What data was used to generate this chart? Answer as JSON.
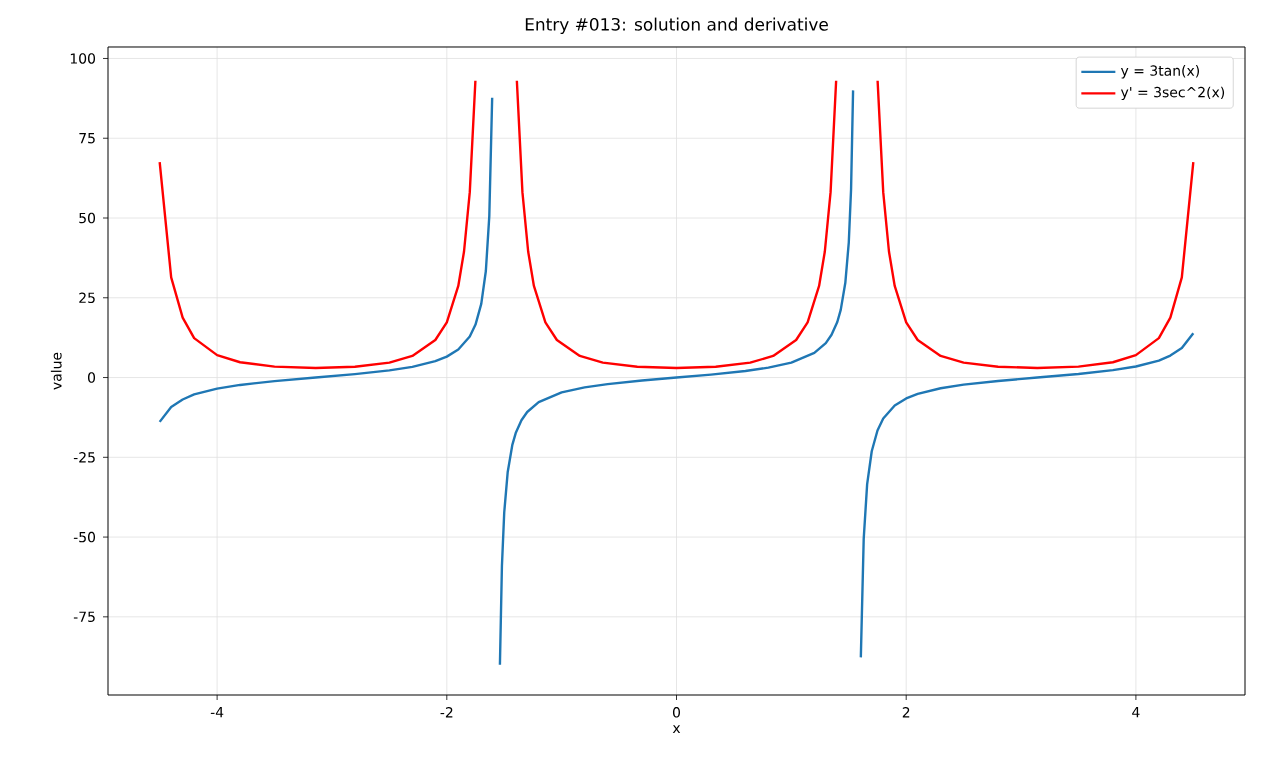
{
  "chart_data": {
    "type": "line",
    "title": "Entry #013: solution and derivative",
    "xlabel": "x",
    "ylabel": "value",
    "xlim": [
      -4.95,
      4.95
    ],
    "ylim": [
      -99.5,
      103.6
    ],
    "xticks": [
      -4,
      -2,
      0,
      2,
      4
    ],
    "yticks": [
      -75,
      -50,
      -25,
      0,
      25,
      50,
      75,
      100
    ],
    "grid": true,
    "legend": "top right",
    "series": [
      {
        "name": "y = 3tan(x)",
        "color": "#1f77b4",
        "x": [
          -4.5,
          -4.4,
          -4.3,
          -4.2,
          -4.0,
          -3.8,
          -3.5,
          -3.1416,
          -2.8,
          -2.5,
          -2.3,
          -2.1,
          -2.0,
          -1.9,
          -1.8,
          -1.75,
          -1.7,
          -1.66,
          -1.63,
          -1.605,
          -1.57,
          -1.5375,
          -1.52,
          -1.5,
          -1.47,
          -1.43,
          -1.4,
          -1.35,
          -1.3,
          -1.2,
          -1.0,
          -0.8,
          -0.6,
          -0.3,
          0,
          0.3,
          0.6,
          0.8,
          1.0,
          1.2,
          1.3,
          1.35,
          1.4,
          1.43,
          1.47,
          1.5,
          1.52,
          1.5375,
          1.57,
          1.605,
          1.63,
          1.66,
          1.7,
          1.75,
          1.8,
          1.9,
          2.0,
          2.1,
          2.3,
          2.5,
          2.8,
          3.1416,
          3.5,
          3.8,
          4.0,
          4.2,
          4.3,
          4.4,
          4.5
        ],
        "values": [
          -13.9,
          -9.23,
          -6.89,
          -5.3,
          -3.47,
          -2.32,
          -1.12,
          0,
          1.07,
          2.24,
          3.36,
          5.13,
          6.56,
          8.78,
          12.86,
          16.6,
          23.1,
          33.4,
          50.6,
          87.7,
          null,
          -90.0,
          -59.0,
          -42.3,
          -29.7,
          -21.2,
          -17.4,
          -13.4,
          -10.8,
          -7.72,
          -4.67,
          -3.09,
          -2.05,
          -0.93,
          0,
          0.93,
          2.05,
          3.09,
          4.67,
          7.72,
          10.8,
          13.4,
          17.4,
          21.2,
          29.7,
          42.3,
          59.0,
          90.0,
          null,
          -87.7,
          -50.6,
          -33.4,
          -23.1,
          -16.6,
          -12.86,
          -8.78,
          -6.56,
          -5.13,
          -3.36,
          -2.24,
          -1.07,
          0,
          1.12,
          2.32,
          3.47,
          5.3,
          6.89,
          9.23,
          13.9
        ]
      },
      {
        "name": "y' = 3sec^2(x)",
        "color": "#ff0000",
        "x": [
          -4.5,
          -4.4,
          -4.3,
          -4.2,
          -4.0,
          -3.8,
          -3.5,
          -3.1416,
          -2.8,
          -2.5,
          -2.3,
          -2.1,
          -2.0,
          -1.9,
          -1.85,
          -1.8,
          -1.751,
          -1.57,
          -1.39,
          -1.3416,
          -1.2916,
          -1.2416,
          -1.1416,
          -1.0416,
          -0.8416,
          -0.6416,
          -0.3416,
          0,
          0.3416,
          0.6416,
          0.8416,
          1.0416,
          1.1416,
          1.2416,
          1.2916,
          1.3416,
          1.39,
          1.57,
          1.751,
          1.8,
          1.85,
          1.9,
          2.0,
          2.1,
          2.3,
          2.5,
          2.8,
          3.1416,
          3.5,
          3.8,
          4.0,
          4.2,
          4.3,
          4.4,
          4.5
        ],
        "values": [
          67.5,
          31.4,
          18.8,
          12.36,
          7.02,
          4.79,
          3.42,
          3,
          3.38,
          4.67,
          6.76,
          11.77,
          17.3,
          28.7,
          39.5,
          58.1,
          93.0,
          null,
          93.0,
          58.1,
          39.5,
          28.7,
          17.3,
          11.77,
          6.76,
          4.67,
          3.38,
          3,
          3.38,
          4.67,
          6.76,
          11.77,
          17.3,
          28.7,
          39.5,
          58.1,
          93.0,
          null,
          93.0,
          58.1,
          39.5,
          28.7,
          17.3,
          11.77,
          6.76,
          4.67,
          3.38,
          3,
          3.42,
          4.79,
          7.02,
          12.36,
          18.8,
          31.4,
          67.5
        ]
      }
    ]
  }
}
